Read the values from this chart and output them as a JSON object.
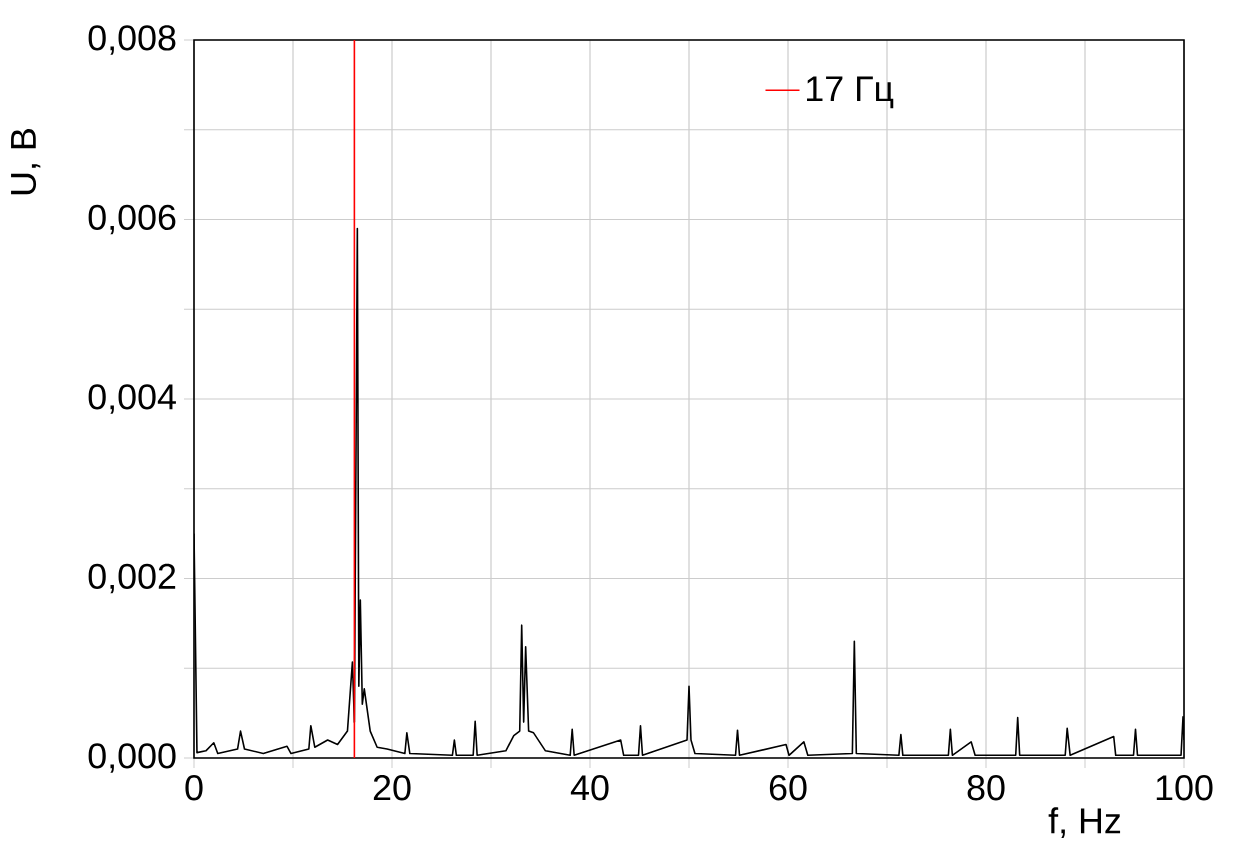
{
  "chart_data": {
    "type": "line",
    "xlabel": "f, Hz",
    "ylabel": "U, B",
    "xlim": [
      0,
      100
    ],
    "ylim": [
      0,
      0.008
    ],
    "xticks": [
      0,
      {
        "value": 10,
        "label": null
      },
      20,
      {
        "value": 30,
        "label": null
      },
      40,
      {
        "value": 50,
        "label": null
      },
      60,
      {
        "value": 70,
        "label": null
      },
      80,
      {
        "value": 90,
        "label": null
      },
      100
    ],
    "yticks": [
      {
        "value": 0,
        "label": "0,000"
      },
      {
        "value": 0.001,
        "label": null
      },
      {
        "value": 0.002,
        "label": "0,002"
      },
      {
        "value": 0.003,
        "label": null
      },
      {
        "value": 0.004,
        "label": "0,004"
      },
      {
        "value": 0.005,
        "label": null
      },
      {
        "value": 0.006,
        "label": "0,006"
      },
      {
        "value": 0.007,
        "label": null
      },
      {
        "value": 0.008,
        "label": "0,008"
      }
    ],
    "grid": true,
    "legend": "top right",
    "marker": "none",
    "line_style": "solid",
    "series": [
      {
        "color": "#000000",
        "x": [
          0,
          0.3,
          1.2,
          2,
          2.4,
          4.4,
          4.7,
          5.1,
          7,
          9.4,
          9.8,
          11.6,
          11.8,
          12.2,
          13.5,
          14.5,
          15.5,
          16.0,
          16.2,
          16.5,
          16.65,
          16.8,
          17.0,
          17.2,
          17.8,
          18.5,
          19.5,
          21.3,
          21.5,
          21.8,
          26.1,
          26.3,
          26.5,
          28.2,
          28.4,
          28.6,
          31.5,
          32.3,
          32.9,
          33.1,
          33.3,
          33.5,
          33.8,
          34.3,
          35.5,
          38.0,
          38.2,
          38.4,
          43.1,
          43.4,
          44.9,
          45.1,
          45.3,
          49.8,
          50.0,
          50.2,
          50.6,
          54.7,
          54.9,
          55.1,
          59.8,
          60.1,
          61.6,
          62,
          66.5,
          66.7,
          66.9,
          71.2,
          71.4,
          71.6,
          76.2,
          76.4,
          76.6,
          78.5,
          78.9,
          83.0,
          83.2,
          83.4,
          88.0,
          88.2,
          88.5,
          92.9,
          93.1,
          94.9,
          95.1,
          95.3,
          99.7,
          99.9,
          100
        ],
        "values": [
          0.0025,
          6e-05,
          8e-05,
          0.00017,
          5e-05,
          0.0001,
          0.0003,
          0.0001,
          5e-05,
          0.00013,
          5e-05,
          0.0001,
          0.00036,
          0.00012,
          0.0002,
          0.00015,
          0.0003,
          0.00107,
          0.0004,
          0.0059,
          0.0008,
          0.00176,
          0.0006,
          0.00077,
          0.0003,
          0.00012,
          0.0001,
          5e-05,
          0.00028,
          5e-05,
          3e-05,
          0.0002,
          3e-05,
          3e-05,
          0.00041,
          3e-05,
          8e-05,
          0.00025,
          0.0003,
          0.00148,
          0.0004,
          0.00124,
          0.0003,
          0.00028,
          8e-05,
          3e-05,
          0.00032,
          3e-05,
          0.0002,
          3e-05,
          3e-05,
          0.00036,
          3e-05,
          0.0002,
          0.0008,
          0.0002,
          5e-05,
          3e-05,
          0.00031,
          3e-05,
          0.00015,
          3e-05,
          0.00018,
          3e-05,
          5e-05,
          0.0013,
          5e-05,
          3e-05,
          0.00026,
          3e-05,
          3e-05,
          0.00032,
          3e-05,
          0.00018,
          3e-05,
          3e-05,
          0.00045,
          3e-05,
          3e-05,
          0.00033,
          3e-05,
          0.00024,
          3e-05,
          3e-05,
          0.00032,
          3e-05,
          3e-05,
          0.00046,
          0.0002
        ]
      },
      {
        "name": "17 Гц",
        "color": "#ff0000",
        "x": [
          16.2,
          16.2
        ],
        "values": [
          0,
          0.008
        ]
      }
    ]
  }
}
